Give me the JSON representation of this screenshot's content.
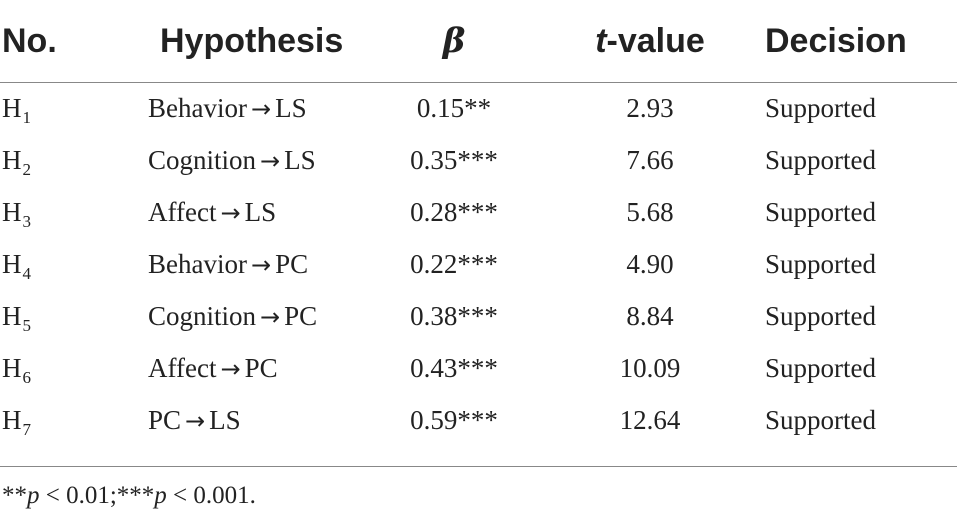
{
  "headers": {
    "no": "No.",
    "hypothesis": "Hypothesis",
    "beta": "β",
    "t_ital": "t",
    "t_rest": "-value",
    "decision": "Decision"
  },
  "rows": [
    {
      "h": "H",
      "sub": "1",
      "from": "Behavior",
      "arrow": "→",
      "to": "LS",
      "beta": "0.15**",
      "t": "2.93",
      "decision": "Supported"
    },
    {
      "h": "H",
      "sub": "2",
      "from": "Cognition",
      "arrow": "→",
      "to": "LS",
      "beta": "0.35***",
      "t": "7.66",
      "decision": "Supported"
    },
    {
      "h": "H",
      "sub": "3",
      "from": "Affect",
      "arrow": "→",
      "to": "LS",
      "beta": "0.28***",
      "t": "5.68",
      "decision": "Supported"
    },
    {
      "h": "H",
      "sub": "4",
      "from": "Behavior",
      "arrow": "→",
      "to": "PC",
      "beta": "0.22***",
      "t": "4.90",
      "decision": "Supported"
    },
    {
      "h": "H",
      "sub": "5",
      "from": "Cognition",
      "arrow": "→",
      "to": "PC",
      "beta": "0.38***",
      "t": "8.84",
      "decision": "Supported"
    },
    {
      "h": "H",
      "sub": "6",
      "from": "Affect",
      "arrow": "→",
      "to": "PC",
      "beta": "0.43***",
      "t": "10.09",
      "decision": "Supported"
    },
    {
      "h": "H",
      "sub": "7",
      "from": "PC",
      "arrow": "→",
      "to": "LS",
      "beta": "0.59***",
      "t": "12.64",
      "decision": "Supported"
    }
  ],
  "footnote": {
    "s1": "**",
    "p1": "p",
    "v1": " < 0.01;***",
    "p2": "p",
    "v2": " < 0.001."
  }
}
